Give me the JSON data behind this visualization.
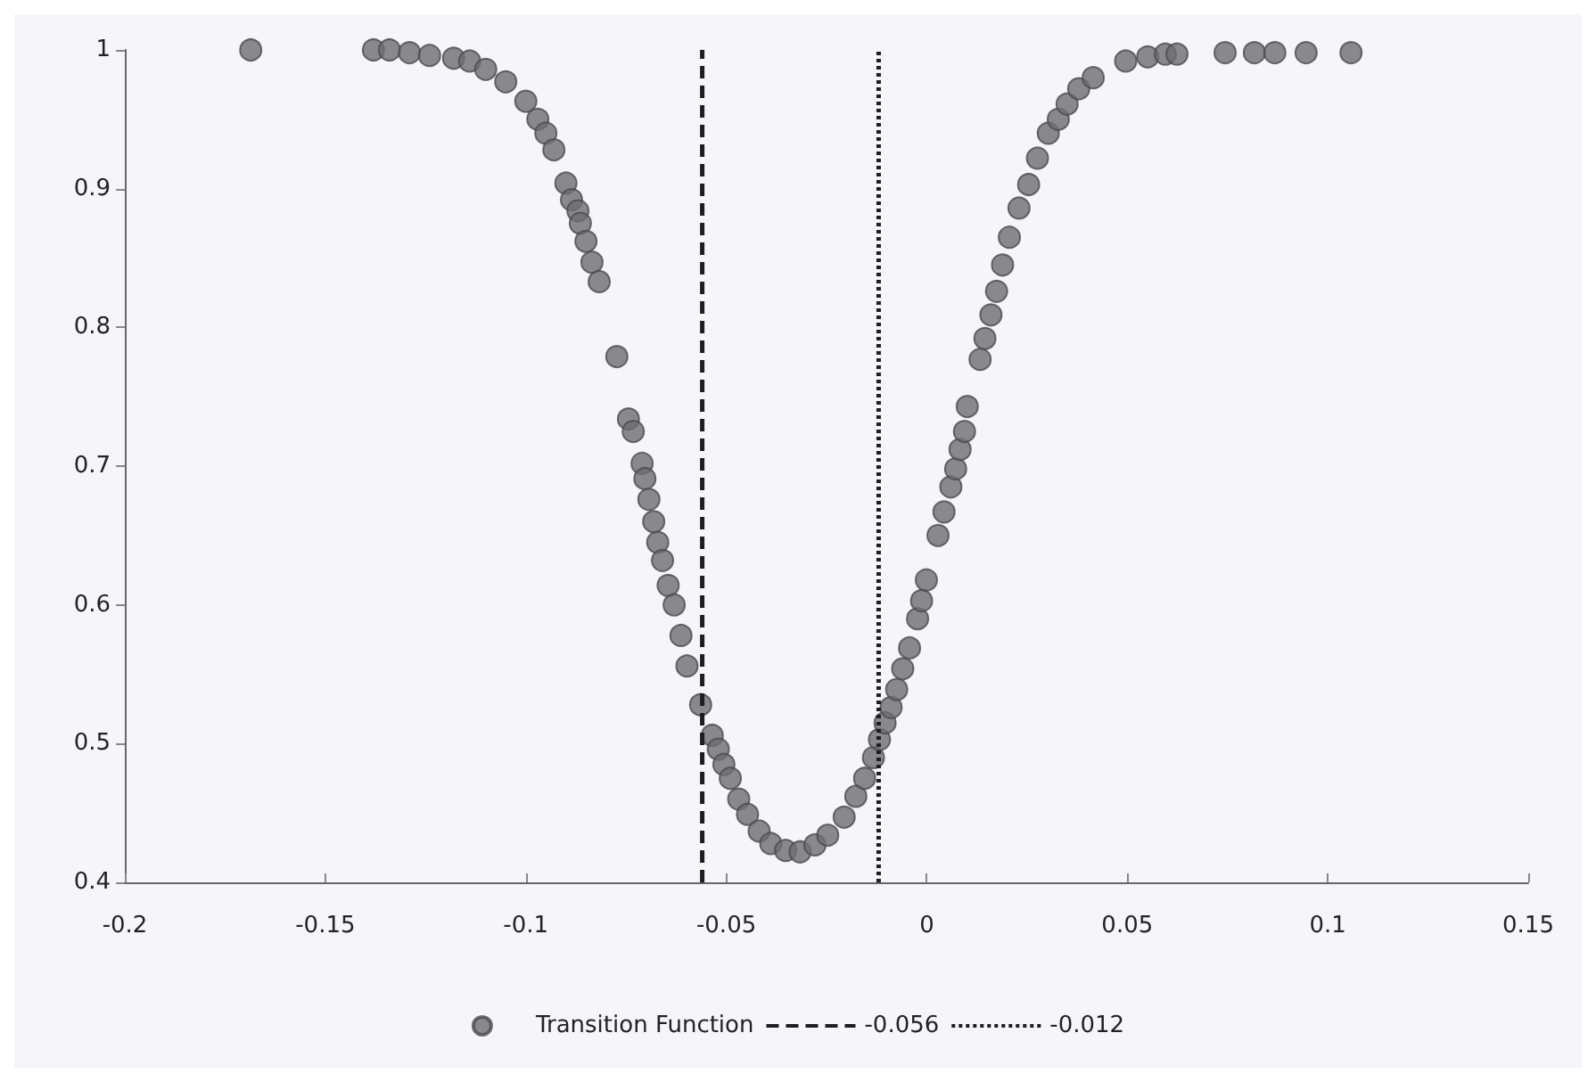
{
  "chart_data": {
    "type": "scatter",
    "series": [
      {
        "name": "Transition Function",
        "color": "#6e6e72",
        "x": [
          -0.1686,
          -0.138,
          -0.134,
          -0.129,
          -0.124,
          -0.118,
          -0.114,
          -0.11,
          -0.105,
          -0.1,
          -0.097,
          -0.095,
          -0.093,
          -0.09,
          -0.0886,
          -0.087,
          -0.0864,
          -0.085,
          -0.0835,
          -0.0817,
          -0.0773,
          -0.0744,
          -0.0732,
          -0.071,
          -0.0703,
          -0.0693,
          -0.0681,
          -0.0671,
          -0.0659,
          -0.0645,
          -0.063,
          -0.0613,
          -0.0598,
          -0.0564,
          -0.0535,
          -0.052,
          -0.0506,
          -0.049,
          -0.0469,
          -0.0447,
          -0.0418,
          -0.0389,
          -0.0352,
          -0.0316,
          -0.0279,
          -0.0247,
          -0.0206,
          -0.0177,
          -0.0155,
          -0.0133,
          -0.0118,
          -0.0104,
          -0.0089,
          -0.0075,
          -0.006,
          -0.0043,
          -0.0023,
          -0.0013,
          -0.0001,
          0.0028,
          0.0043,
          0.006,
          0.0072,
          0.0083,
          0.0094,
          0.0101,
          0.0133,
          0.0145,
          0.016,
          0.0174,
          0.0189,
          0.0206,
          0.023,
          0.0254,
          0.0276,
          0.0303,
          0.0328,
          0.035,
          0.0379,
          0.0415,
          0.0496,
          0.0551,
          0.0595,
          0.0624,
          0.0744,
          0.0817,
          0.0868,
          0.0946,
          0.1058
        ],
        "values": [
          1.0,
          1.0,
          1.0,
          0.998,
          0.996,
          0.994,
          0.992,
          0.986,
          0.977,
          0.963,
          0.95,
          0.94,
          0.928,
          0.904,
          0.892,
          0.884,
          0.875,
          0.862,
          0.847,
          0.833,
          0.779,
          0.734,
          0.725,
          0.702,
          0.691,
          0.676,
          0.66,
          0.645,
          0.632,
          0.614,
          0.6,
          0.578,
          0.556,
          0.528,
          0.506,
          0.496,
          0.485,
          0.475,
          0.46,
          0.449,
          0.437,
          0.428,
          0.423,
          0.422,
          0.427,
          0.434,
          0.447,
          0.462,
          0.475,
          0.49,
          0.503,
          0.515,
          0.526,
          0.539,
          0.554,
          0.569,
          0.59,
          0.603,
          0.618,
          0.65,
          0.667,
          0.685,
          0.698,
          0.712,
          0.725,
          0.743,
          0.777,
          0.792,
          0.809,
          0.826,
          0.845,
          0.865,
          0.886,
          0.903,
          0.922,
          0.94,
          0.95,
          0.961,
          0.972,
          0.98,
          0.992,
          0.995,
          0.997,
          0.997,
          0.998,
          0.998,
          0.998,
          0.998,
          0.998
        ]
      }
    ],
    "ref_lines": [
      {
        "axis": "x",
        "value": -0.056,
        "label": "-0.056",
        "color": "#1e1e1e",
        "line_style": "dashed"
      },
      {
        "axis": "x",
        "value": -0.012,
        "label": "-0.012",
        "color": "#1e1e1e",
        "line_style": "dotted"
      }
    ],
    "xlim": [
      -0.2,
      0.15
    ],
    "xticks": [
      -0.2,
      -0.15,
      -0.1,
      -0.05,
      0,
      0.05,
      0.1,
      0.15
    ],
    "ylim": [
      0.4,
      1
    ],
    "yticks": [
      0.4,
      0.5,
      0.6,
      0.7,
      0.8,
      0.9,
      1
    ],
    "grid": false,
    "legend": "bottom",
    "marker": "circle"
  }
}
